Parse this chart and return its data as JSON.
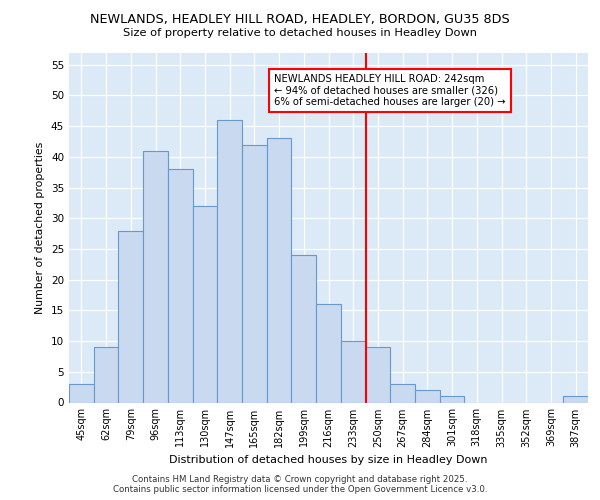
{
  "title1": "NEWLANDS, HEADLEY HILL ROAD, HEADLEY, BORDON, GU35 8DS",
  "title2": "Size of property relative to detached houses in Headley Down",
  "xlabel": "Distribution of detached houses by size in Headley Down",
  "ylabel": "Number of detached properties",
  "categories": [
    "45sqm",
    "62sqm",
    "79sqm",
    "96sqm",
    "113sqm",
    "130sqm",
    "147sqm",
    "165sqm",
    "182sqm",
    "199sqm",
    "216sqm",
    "233sqm",
    "250sqm",
    "267sqm",
    "284sqm",
    "301sqm",
    "318sqm",
    "335sqm",
    "352sqm",
    "369sqm",
    "387sqm"
  ],
  "values": [
    3,
    9,
    28,
    41,
    38,
    32,
    46,
    42,
    43,
    24,
    16,
    10,
    9,
    3,
    2,
    1,
    0,
    0,
    0,
    0,
    1
  ],
  "bar_color": "#c8d9f0",
  "bar_edge_color": "#6699cc",
  "red_line_after_index": 11,
  "red_line_label": "NEWLANDS HEADLEY HILL ROAD: 242sqm",
  "annotation_line2": "← 94% of detached houses are smaller (326)",
  "annotation_line3": "6% of semi-detached houses are larger (20) →",
  "ylim": [
    0,
    57
  ],
  "yticks": [
    0,
    5,
    10,
    15,
    20,
    25,
    30,
    35,
    40,
    45,
    50,
    55
  ],
  "background_color": "#dce9f7",
  "grid_color": "#ffffff",
  "footer1": "Contains HM Land Registry data © Crown copyright and database right 2025.",
  "footer2": "Contains public sector information licensed under the Open Government Licence v3.0."
}
